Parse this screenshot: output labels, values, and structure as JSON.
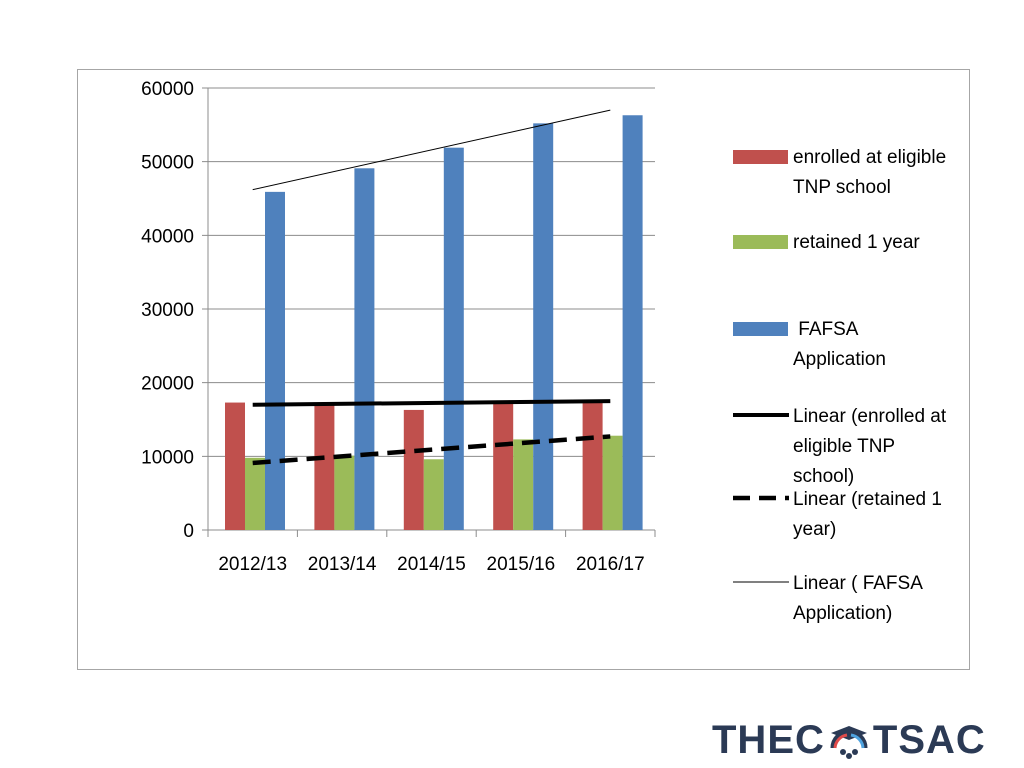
{
  "chart_data": {
    "type": "bar",
    "title": "",
    "xlabel": "",
    "ylabel": "",
    "categories": [
      "2012/13",
      "2013/14",
      "2014/15",
      "2015/16",
      "2016/17"
    ],
    "ylim": [
      0,
      60000
    ],
    "yticks": [
      0,
      10000,
      20000,
      30000,
      40000,
      50000,
      60000
    ],
    "grid": true,
    "legend_position": "right",
    "series": [
      {
        "name": "enrolled at eligible TNP school",
        "color": "#c0504d",
        "values": [
          17300,
          17000,
          16300,
          17200,
          17500
        ]
      },
      {
        "name": "retained 1 year",
        "color": "#9bbb59",
        "values": [
          9800,
          10100,
          9600,
          12300,
          12800
        ]
      },
      {
        "name": "FAFSA Application",
        "color": "#4f81bd",
        "values": [
          45900,
          49100,
          51900,
          55200,
          56300
        ]
      }
    ],
    "trendlines": [
      {
        "name": "Linear (enrolled at eligible TNP school)",
        "style": "solid-thick",
        "start": 17000,
        "end": 17500
      },
      {
        "name": "Linear (retained 1 year)",
        "style": "dashed-thick",
        "start": 9100,
        "end": 12700
      },
      {
        "name": "Linear ( FAFSA Application)",
        "style": "solid-thin",
        "start": 46200,
        "end": 57000
      }
    ],
    "legend": [
      {
        "lines": [
          "enrolled at eligible",
          "TNP school"
        ],
        "kind": "box",
        "color": "#c0504d"
      },
      {
        "lines": [
          "retained 1 year"
        ],
        "kind": "box",
        "color": "#9bbb59"
      },
      {
        "lines": [
          " FAFSA",
          "Application"
        ],
        "kind": "box",
        "color": "#4f81bd"
      },
      {
        "lines": [
          "Linear (enrolled at",
          "eligible TNP",
          "school)"
        ],
        "kind": "solid-thick",
        "color": "#000000"
      },
      {
        "lines": [
          "Linear (retained 1",
          "year)"
        ],
        "kind": "dashed-thick",
        "color": "#000000"
      },
      {
        "lines": [
          "Linear ( FAFSA",
          "Application)"
        ],
        "kind": "solid-thin",
        "color": "#000000"
      }
    ]
  },
  "logo": {
    "left_text": "THEC",
    "right_text": "TSAC"
  }
}
